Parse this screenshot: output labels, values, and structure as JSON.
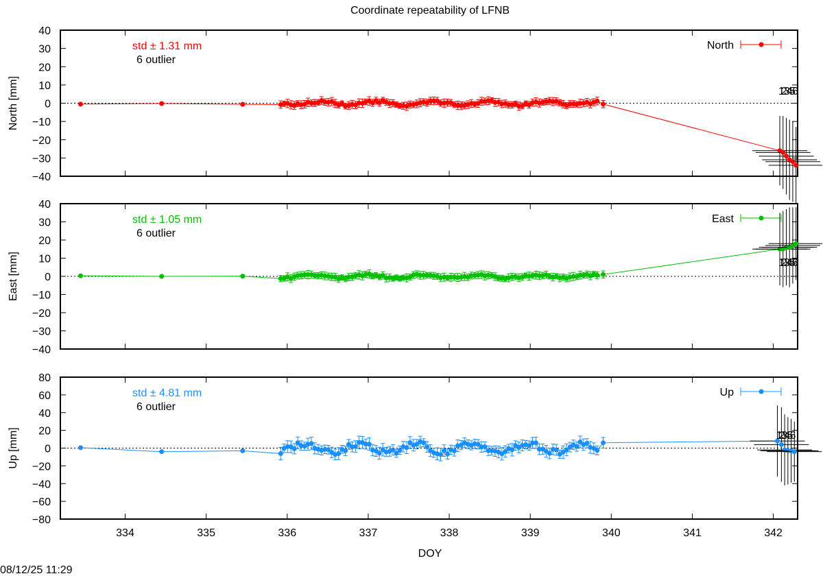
{
  "chart_data": {
    "type": "line",
    "title": "Coordinate repeatability of LFNB",
    "xlabel": "DOY",
    "xlim": [
      333.2,
      342.3
    ],
    "xticks": [
      334,
      335,
      336,
      337,
      338,
      339,
      340,
      341,
      342
    ],
    "timestamp": "08/12/25 11:29",
    "panels": [
      {
        "name": "North",
        "ylabel": "North [mm]",
        "ylim": [
          -40,
          40
        ],
        "yticks": [
          -40,
          -30,
          -20,
          -10,
          0,
          10,
          20,
          30,
          40
        ],
        "color": "#ff0000",
        "std_label": "std ± 1.31 mm",
        "outlier_label": "6 outlier",
        "legend": "North",
        "sparse": [
          [
            333.45,
            -0.5,
            0.5
          ],
          [
            334.45,
            -0.2,
            0.5
          ],
          [
            335.45,
            -0.6,
            0.5
          ]
        ],
        "end": [
          339.9,
          -0.5,
          2.0
        ],
        "outliers": [
          {
            "x": 342.08,
            "y": -26,
            "err": 19
          },
          {
            "x": 342.12,
            "y": -27,
            "err": 20
          },
          {
            "x": 342.16,
            "y": -29,
            "err": 21
          },
          {
            "x": 342.2,
            "y": -31,
            "err": 22
          },
          {
            "x": 342.24,
            "y": -32,
            "err": 22
          },
          {
            "x": 342.28,
            "y": -34,
            "err": 21
          }
        ],
        "outlier_ids": "123456",
        "outlier_id_y": 7,
        "dense_amp": 1.3,
        "dense_err": 1.8
      },
      {
        "name": "East",
        "ylabel": "East [mm]",
        "ylim": [
          -40,
          40
        ],
        "yticks": [
          -40,
          -30,
          -20,
          -10,
          0,
          10,
          20,
          30,
          40
        ],
        "color": "#00c000",
        "std_label": "std ± 1.05 mm",
        "outlier_label": "6 outlier",
        "legend": "East",
        "sparse": [
          [
            333.45,
            0.3,
            0.5
          ],
          [
            334.45,
            0.0,
            0.5
          ],
          [
            335.45,
            0.1,
            0.5
          ]
        ],
        "end": [
          339.9,
          1.0,
          2.0
        ],
        "outliers": [
          {
            "x": 342.08,
            "y": 15,
            "err": 20
          },
          {
            "x": 342.12,
            "y": 15,
            "err": 21
          },
          {
            "x": 342.16,
            "y": 16,
            "err": 21
          },
          {
            "x": 342.2,
            "y": 16,
            "err": 22
          },
          {
            "x": 342.24,
            "y": 17,
            "err": 21
          },
          {
            "x": 342.28,
            "y": 18,
            "err": 20
          }
        ],
        "outlier_ids": "123456",
        "outlier_id_y": 8,
        "dense_amp": 1.1,
        "dense_err": 1.8
      },
      {
        "name": "Up",
        "ylabel": "Up [mm]",
        "ylim": [
          -80,
          80
        ],
        "yticks": [
          -80,
          -60,
          -40,
          -20,
          0,
          20,
          40,
          60,
          80
        ],
        "color": "#1a8fff",
        "std_label": "std ± 4.81 mm",
        "outlier_label": "6 outlier",
        "legend": "Up",
        "sparse": [
          [
            333.45,
            0.5,
            1.0
          ],
          [
            334.45,
            -4,
            1.0
          ],
          [
            335.45,
            -3,
            1.0
          ]
        ],
        "end": [
          339.9,
          6,
          6.0
        ],
        "outliers": [
          {
            "x": 342.05,
            "y": 8,
            "err": 40
          },
          {
            "x": 342.1,
            "y": 4,
            "err": 42
          },
          {
            "x": 342.14,
            "y": -2,
            "err": 40
          },
          {
            "x": 342.18,
            "y": -3,
            "err": 38
          },
          {
            "x": 342.22,
            "y": -3,
            "err": 36
          },
          {
            "x": 342.26,
            "y": -4,
            "err": 34
          }
        ],
        "outlier_ids": "123456",
        "outlier_id_y": 15,
        "dense_amp": 6,
        "dense_err": 5.5
      }
    ]
  }
}
